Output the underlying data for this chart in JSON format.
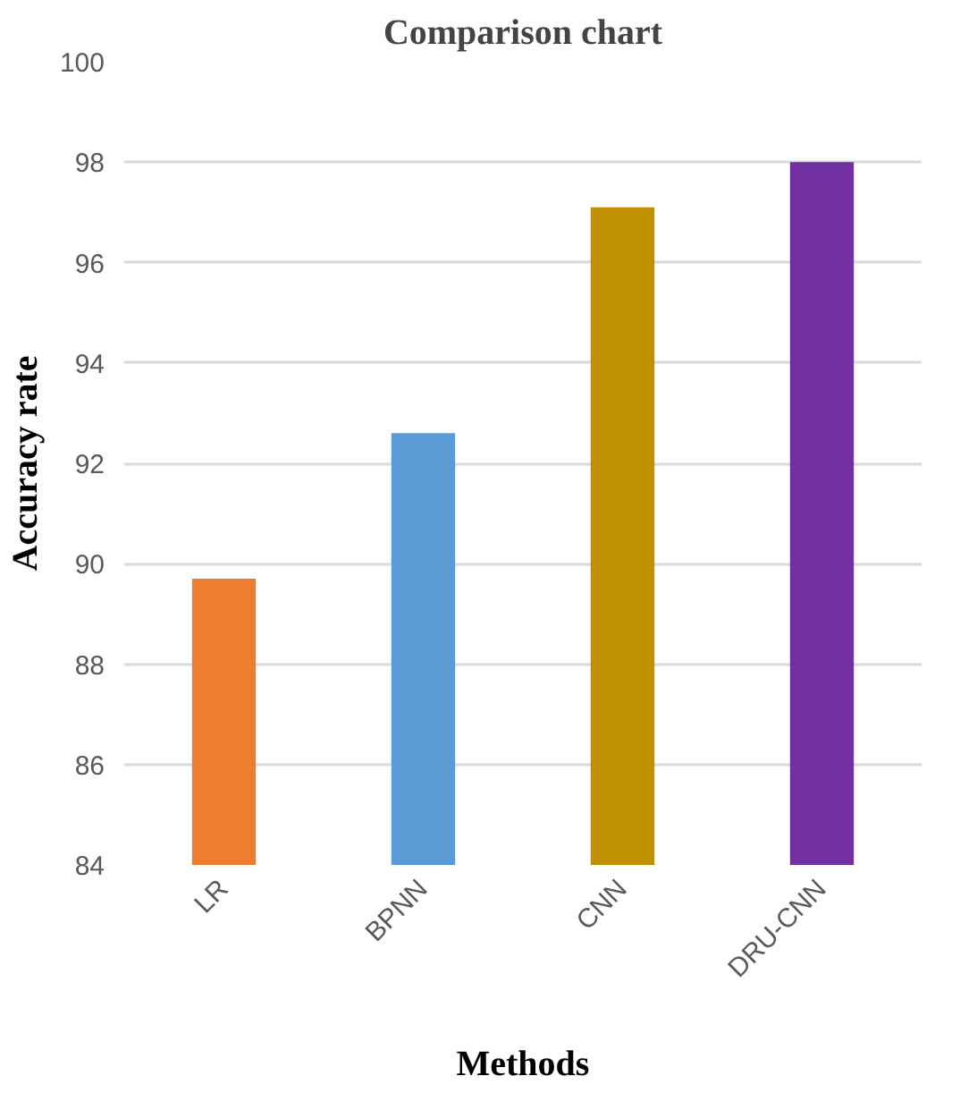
{
  "chart_data": {
    "type": "bar",
    "title": "Comparison chart",
    "xlabel": "Methods",
    "ylabel": "Accuracy rate",
    "categories": [
      "LR",
      "BPNN",
      "CNN",
      "DRU-CNN"
    ],
    "values": [
      89.7,
      92.6,
      97.1,
      98.0
    ],
    "colors": [
      "#ed7d31",
      "#5b9bd5",
      "#bf9000",
      "#7030a0"
    ],
    "ylim": [
      84,
      100
    ],
    "yticks": [
      84,
      86,
      88,
      90,
      92,
      94,
      96,
      98,
      100
    ],
    "grid": "y"
  }
}
